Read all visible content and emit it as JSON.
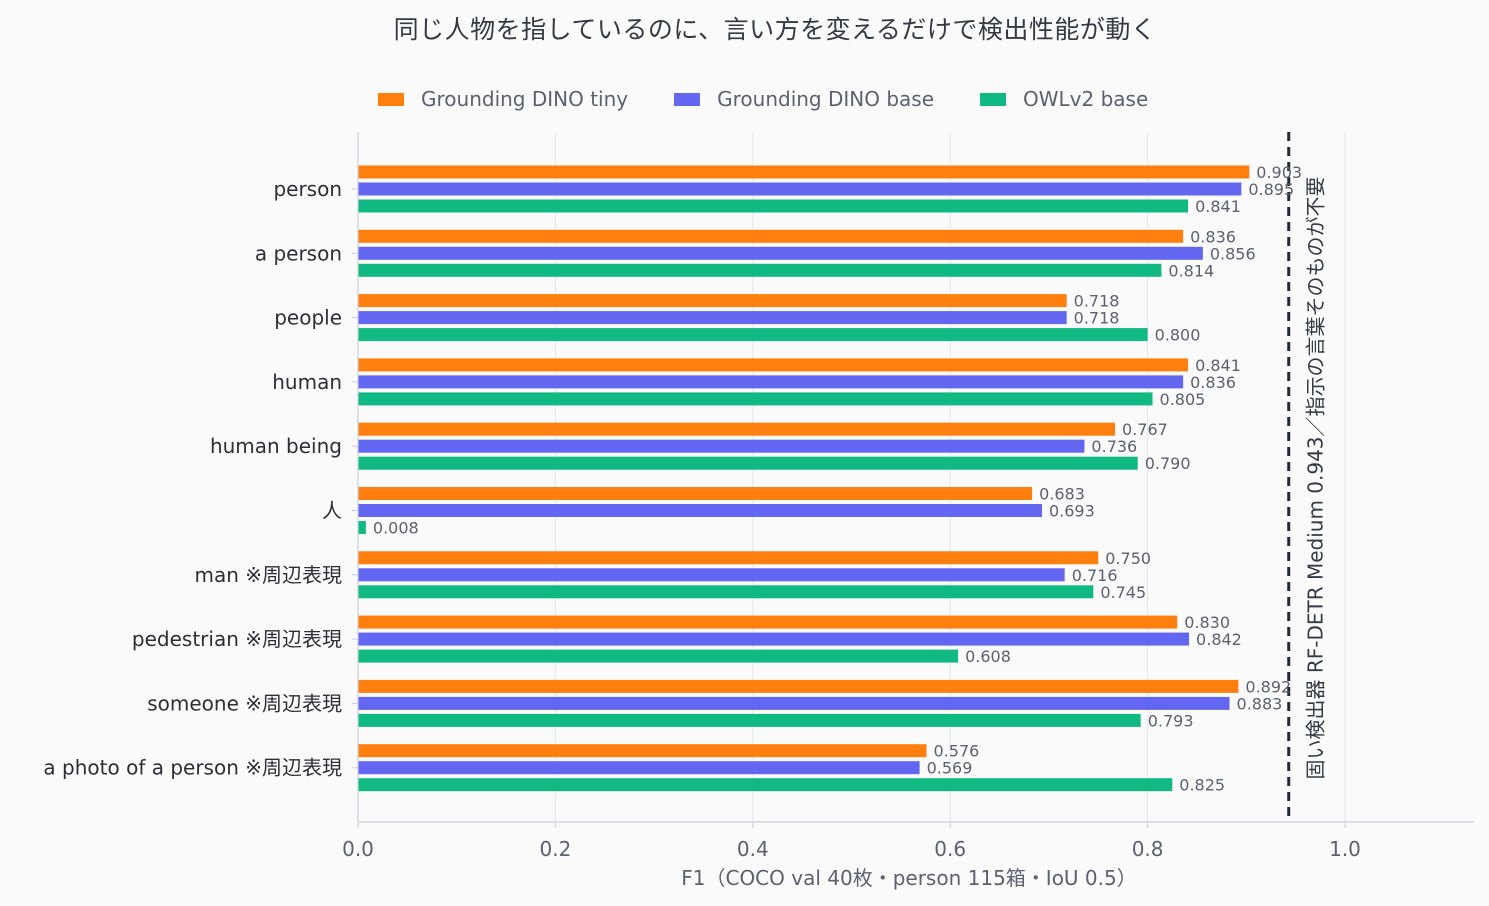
{
  "chart_data": {
    "type": "bar",
    "orientation": "horizontal",
    "title": "同じ人物を指しているのに、言い方を変えるだけで検出性能が動く",
    "xlabel": "F1（COCO val 40枚・person 115箱・IoU 0.5）",
    "ylabel": "",
    "xlim": [
      0,
      1.13
    ],
    "xticks": [
      "0.0",
      "0.2",
      "0.4",
      "0.6",
      "0.8",
      "1.0"
    ],
    "grid": "vertical",
    "legend_position": "top",
    "categories": [
      "person",
      "a person",
      "people",
      "human",
      "human being",
      "人",
      "man ※周辺表現",
      "pedestrian ※周辺表現",
      "someone ※周辺表現",
      "a photo of a person ※周辺表現"
    ],
    "series": [
      {
        "name": "Grounding DINO tiny",
        "color": "#ff7f0e",
        "values": [
          0.903,
          0.836,
          0.718,
          0.841,
          0.767,
          0.683,
          0.75,
          0.83,
          0.892,
          0.576
        ],
        "labels": [
          "0.903",
          "0.836",
          "0.718",
          "0.841",
          "0.767",
          "0.683",
          "0.750",
          "0.830",
          "0.892",
          "0.576"
        ]
      },
      {
        "name": "Grounding DINO base",
        "color": "#6366f1",
        "values": [
          0.895,
          0.856,
          0.718,
          0.836,
          0.736,
          0.693,
          0.716,
          0.842,
          0.883,
          0.569
        ],
        "labels": [
          "0.895",
          "0.856",
          "0.718",
          "0.836",
          "0.736",
          "0.693",
          "0.716",
          "0.842",
          "0.883",
          "0.569"
        ]
      },
      {
        "name": "OWLv2 base",
        "color": "#10b981",
        "values": [
          0.841,
          0.814,
          0.8,
          0.805,
          0.79,
          0.008,
          0.745,
          0.608,
          0.793,
          0.825
        ],
        "labels": [
          "0.841",
          "0.814",
          "0.800",
          "0.805",
          "0.790",
          "0.008",
          "0.745",
          "0.608",
          "0.793",
          "0.825"
        ]
      }
    ],
    "reference_line": {
      "value": 0.943,
      "style": "dashed",
      "color": "#1f2937",
      "label": "固い検出器 RF-DETR Medium 0.943／指示の言葉そのものが不要"
    }
  }
}
